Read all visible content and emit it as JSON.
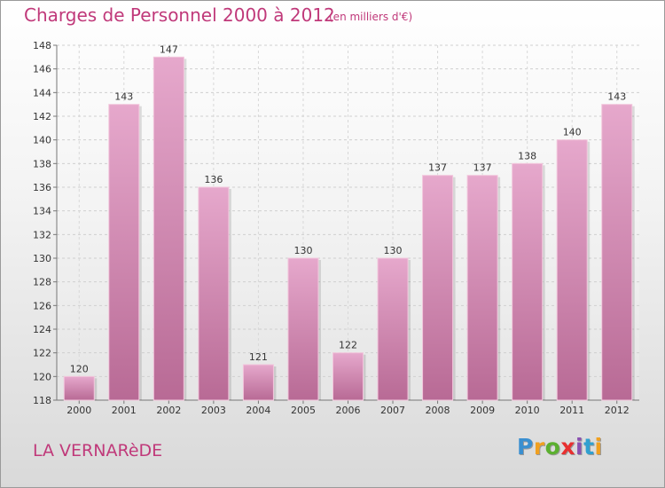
{
  "chart_data": {
    "type": "bar",
    "title": "Charges de Personnel 2000 à 2012",
    "subtitle": "(en milliers d'€)",
    "categories": [
      "2000",
      "2001",
      "2002",
      "2003",
      "2004",
      "2005",
      "2006",
      "2007",
      "2008",
      "2009",
      "2010",
      "2011",
      "2012"
    ],
    "values": [
      120,
      143,
      147,
      136,
      121,
      130,
      122,
      130,
      137,
      137,
      138,
      140,
      143
    ],
    "ylim": [
      118,
      148
    ],
    "yticks": [
      118,
      120,
      122,
      124,
      126,
      128,
      130,
      132,
      134,
      136,
      138,
      140,
      142,
      144,
      146,
      148
    ],
    "grid": true,
    "bar_color": "#c9709f"
  },
  "footer": {
    "commune": "LA VERNARèDE",
    "brand_letters": [
      "P",
      "r",
      "o",
      "x",
      "i",
      "t",
      "i"
    ],
    "brand_colors": [
      "#3a8fd0",
      "#f0a020",
      "#5cb030",
      "#e83030",
      "#8a50b0",
      "#30a0d0",
      "#f0a020"
    ]
  }
}
